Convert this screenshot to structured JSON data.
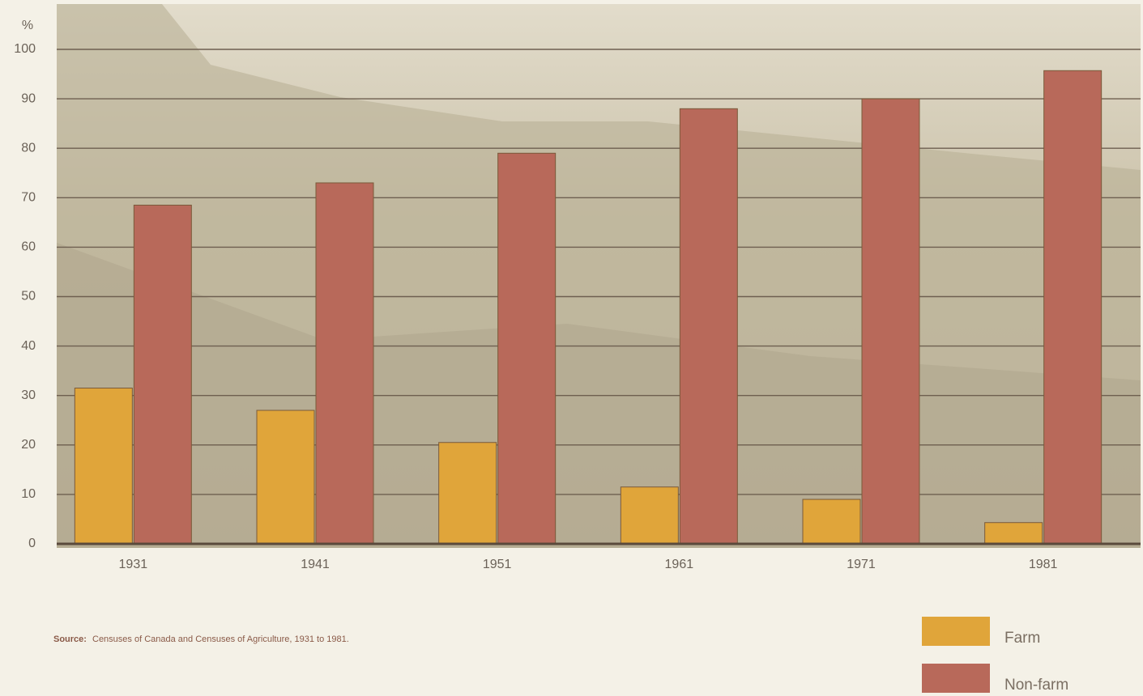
{
  "chart_data": {
    "type": "bar",
    "y_unit_label": "%",
    "categories": [
      "1931",
      "1941",
      "1951",
      "1961",
      "1971",
      "1981"
    ],
    "series": [
      {
        "name": "Farm",
        "color": "#e0a53a",
        "values": [
          31.5,
          27,
          20.5,
          11.5,
          9,
          4.3
        ]
      },
      {
        "name": "Non-farm",
        "color": "#b8695a",
        "values": [
          68.5,
          73,
          79,
          88,
          90,
          95.7
        ]
      }
    ],
    "ylim": [
      0,
      100
    ],
    "yticks": [
      0,
      10,
      20,
      30,
      40,
      50,
      60,
      70,
      80,
      90,
      100
    ],
    "grid": true,
    "source_label": "Source:",
    "source_text": "Censuses of Canada and Censuses of Agriculture, 1931 to 1981."
  }
}
